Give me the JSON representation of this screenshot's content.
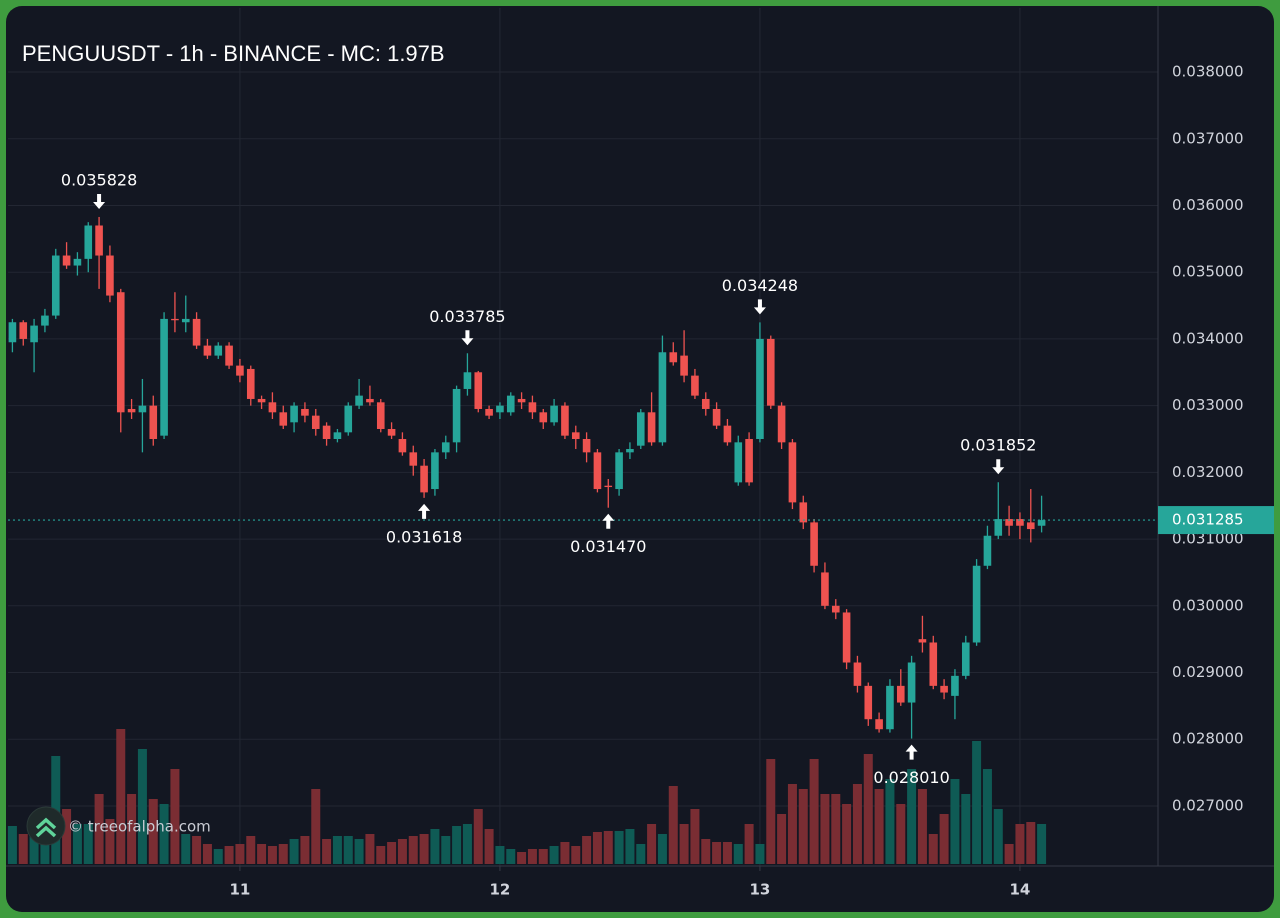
{
  "chart_data": {
    "type": "candlestick",
    "title": "PENGUUSDT - 1h - BINANCE - MC: 1.97B",
    "watermark": "© treeofalpha.com",
    "colors": {
      "up": "#26a69a",
      "down": "#ef5350",
      "volume_up": "#0f5b55",
      "volume_down": "#7a2d33"
    },
    "x": [
      10.125,
      10.1667,
      10.2083,
      10.25,
      10.2917,
      10.3333,
      10.375,
      10.4167,
      10.4583,
      10.5,
      10.5417,
      10.5833,
      10.625,
      10.6667,
      10.7083,
      10.75,
      10.7917,
      10.8333,
      10.875,
      10.9167,
      10.9583,
      11,
      11.0417,
      11.0833,
      11.125,
      11.1667,
      11.2083,
      11.25,
      11.2917,
      11.3333,
      11.375,
      11.4167,
      11.4583,
      11.5,
      11.5417,
      11.5833,
      11.625,
      11.6667,
      11.7083,
      11.75,
      11.7917,
      11.8333,
      11.875,
      11.9167,
      11.9583,
      12,
      12.0417,
      12.0833,
      12.125,
      12.1667,
      12.2083,
      12.25,
      12.2917,
      12.3333,
      12.375,
      12.4167,
      12.4583,
      12.5,
      12.5417,
      12.5833,
      12.625,
      12.6667,
      12.7083,
      12.75,
      12.7917,
      12.8333,
      12.875,
      12.9167,
      12.9583,
      13,
      13.0417,
      13.0833,
      13.125,
      13.1667,
      13.2083,
      13.25,
      13.2917,
      13.3333,
      13.375,
      13.4167,
      13.4583,
      13.5,
      13.5417,
      13.5833,
      13.625,
      13.6667,
      13.7083,
      13.75,
      13.7917,
      13.8333,
      13.875,
      13.9167,
      13.9583,
      14,
      14.0417,
      14.0833
    ],
    "open": [
      0.03395,
      0.03425,
      0.03395,
      0.0342,
      0.03435,
      0.03525,
      0.0351,
      0.0352,
      0.0357,
      0.03525,
      0.0347,
      0.03295,
      0.0329,
      0.033,
      0.03255,
      0.0343,
      0.03425,
      0.0343,
      0.0339,
      0.03375,
      0.0339,
      0.0336,
      0.03355,
      0.0331,
      0.03305,
      0.0329,
      0.03275,
      0.03295,
      0.03285,
      0.0327,
      0.0325,
      0.0326,
      0.033,
      0.0331,
      0.03305,
      0.03265,
      0.0325,
      0.0323,
      0.0321,
      0.03175,
      0.0323,
      0.03245,
      0.03325,
      0.0335,
      0.03295,
      0.0329,
      0.0329,
      0.0331,
      0.03305,
      0.0329,
      0.03275,
      0.033,
      0.0326,
      0.0325,
      0.0323,
      0.0318,
      0.03175,
      0.0323,
      0.0324,
      0.0329,
      0.03245,
      0.0338,
      0.03375,
      0.03345,
      0.0331,
      0.03295,
      0.0327,
      0.03185,
      0.0325,
      0.0325,
      0.034,
      0.033,
      0.03245,
      0.03155,
      0.03125,
      0.0305,
      0.03,
      0.0299,
      0.02915,
      0.0288,
      0.0283,
      0.02815,
      0.0288,
      0.02855,
      0.0295,
      0.02945,
      0.0288,
      0.02865,
      0.02895,
      0.02945,
      0.0306,
      0.03105,
      0.0313,
      0.0313,
      0.03125,
      0.0312
    ],
    "high": [
      0.0343,
      0.03428,
      0.0343,
      0.03445,
      0.03535,
      0.03545,
      0.0353,
      0.03575,
      0.035828,
      0.0354,
      0.03475,
      0.0331,
      0.0334,
      0.03315,
      0.0344,
      0.0347,
      0.03465,
      0.0344,
      0.034,
      0.03395,
      0.03395,
      0.0337,
      0.0336,
      0.03315,
      0.0332,
      0.033,
      0.03305,
      0.03305,
      0.03295,
      0.03275,
      0.03265,
      0.03305,
      0.0334,
      0.0333,
      0.0331,
      0.03275,
      0.0326,
      0.0324,
      0.0322,
      0.03235,
      0.03255,
      0.0333,
      0.033785,
      0.03352,
      0.033,
      0.03305,
      0.0332,
      0.0332,
      0.03315,
      0.03295,
      0.0331,
      0.03305,
      0.0327,
      0.0326,
      0.03235,
      0.0319,
      0.03235,
      0.03245,
      0.03295,
      0.0332,
      0.03405,
      0.03395,
      0.03413,
      0.03355,
      0.0332,
      0.03305,
      0.0328,
      0.03255,
      0.0326,
      0.034248,
      0.03405,
      0.03305,
      0.0325,
      0.03165,
      0.0313,
      0.03065,
      0.0301,
      0.02995,
      0.02925,
      0.02885,
      0.0284,
      0.0289,
      0.02905,
      0.02925,
      0.02985,
      0.02955,
      0.0289,
      0.02905,
      0.02955,
      0.0307,
      0.0312,
      0.031852,
      0.0315,
      0.0314,
      0.03175,
      0.03165
    ],
    "low": [
      0.0338,
      0.0339,
      0.0335,
      0.0341,
      0.0343,
      0.03505,
      0.03495,
      0.035,
      0.03475,
      0.03455,
      0.0326,
      0.0328,
      0.0323,
      0.0324,
      0.0325,
      0.0341,
      0.0341,
      0.03385,
      0.0337,
      0.0337,
      0.03355,
      0.03335,
      0.033,
      0.03295,
      0.0328,
      0.03265,
      0.0326,
      0.03275,
      0.03255,
      0.0324,
      0.03245,
      0.03255,
      0.03295,
      0.033,
      0.0326,
      0.0325,
      0.03225,
      0.03195,
      0.031618,
      0.03165,
      0.0322,
      0.0323,
      0.03315,
      0.0329,
      0.0328,
      0.0328,
      0.03285,
      0.03295,
      0.0328,
      0.03265,
      0.0327,
      0.0325,
      0.03235,
      0.03215,
      0.0317,
      0.03147,
      0.03165,
      0.0322,
      0.03235,
      0.0324,
      0.0324,
      0.0336,
      0.03335,
      0.0331,
      0.03285,
      0.03265,
      0.0324,
      0.0318,
      0.0318,
      0.03245,
      0.03295,
      0.03235,
      0.03145,
      0.03115,
      0.0305,
      0.02995,
      0.0298,
      0.02905,
      0.0287,
      0.0282,
      0.0281,
      0.0281,
      0.0285,
      0.02801,
      0.0293,
      0.02875,
      0.0286,
      0.0283,
      0.0289,
      0.0294,
      0.03055,
      0.031,
      0.03105,
      0.031,
      0.03095,
      0.0311
    ],
    "close": [
      0.03425,
      0.034,
      0.0342,
      0.03435,
      0.03525,
      0.0351,
      0.0352,
      0.0357,
      0.03525,
      0.03465,
      0.0329,
      0.0329,
      0.033,
      0.0325,
      0.0343,
      0.03428,
      0.0343,
      0.0339,
      0.03375,
      0.0339,
      0.0336,
      0.03345,
      0.0331,
      0.03305,
      0.0329,
      0.0327,
      0.033,
      0.03285,
      0.03265,
      0.0325,
      0.0326,
      0.033,
      0.03315,
      0.03305,
      0.03265,
      0.03255,
      0.0323,
      0.0321,
      0.0317,
      0.0323,
      0.03245,
      0.03325,
      0.0335,
      0.03295,
      0.03285,
      0.033,
      0.03315,
      0.03305,
      0.0329,
      0.03275,
      0.033,
      0.03255,
      0.0325,
      0.0323,
      0.03175,
      0.03178,
      0.0323,
      0.03235,
      0.0329,
      0.03245,
      0.0338,
      0.03365,
      0.03345,
      0.03315,
      0.03295,
      0.0327,
      0.03245,
      0.03245,
      0.03185,
      0.034,
      0.033,
      0.03245,
      0.03155,
      0.03125,
      0.0306,
      0.03,
      0.0299,
      0.02915,
      0.0288,
      0.0283,
      0.02815,
      0.0288,
      0.02855,
      0.02915,
      0.02945,
      0.0288,
      0.0287,
      0.02895,
      0.02945,
      0.0306,
      0.03105,
      0.0313,
      0.0312,
      0.0312,
      0.03115,
      0.031285
    ],
    "volume": [
      38,
      30,
      40,
      38,
      108,
      55,
      40,
      40,
      70,
      45,
      135,
      70,
      115,
      65,
      60,
      95,
      30,
      28,
      20,
      15,
      18,
      20,
      28,
      20,
      18,
      20,
      25,
      28,
      75,
      25,
      28,
      28,
      25,
      30,
      18,
      22,
      25,
      28,
      30,
      35,
      28,
      38,
      40,
      55,
      35,
      18,
      15,
      12,
      15,
      15,
      18,
      22,
      18,
      28,
      32,
      33,
      33,
      35,
      20,
      40,
      30,
      78,
      40,
      55,
      25,
      22,
      22,
      20,
      40,
      20,
      105,
      50,
      80,
      75,
      105,
      70,
      70,
      60,
      80,
      110,
      75,
      85,
      60,
      95,
      75,
      30,
      50,
      85,
      70,
      123,
      95,
      55,
      20,
      40,
      42,
      40
    ],
    "ylim": [
      0.0261,
      0.03896
    ],
    "yticks": [
      {
        "value": 0.027,
        "label": "0.027000"
      },
      {
        "value": 0.028,
        "label": "0.028000"
      },
      {
        "value": 0.029,
        "label": "0.029000"
      },
      {
        "value": 0.03,
        "label": "0.030000"
      },
      {
        "value": 0.031,
        "label": "0.031000"
      },
      {
        "value": 0.032,
        "label": "0.032000"
      },
      {
        "value": 0.033,
        "label": "0.033000"
      },
      {
        "value": 0.034,
        "label": "0.034000"
      },
      {
        "value": 0.035,
        "label": "0.035000"
      },
      {
        "value": 0.036,
        "label": "0.036000"
      },
      {
        "value": 0.037,
        "label": "0.037000"
      },
      {
        "value": 0.038,
        "label": "0.038000"
      }
    ],
    "xlim": [
      10.108,
      14.531
    ],
    "xticks": [
      11,
      12,
      13,
      14
    ],
    "grid": true,
    "last_price": {
      "value": 0.031285,
      "label": "0.031285"
    },
    "annotations": [
      {
        "x": 10.4583,
        "value": 0.035828,
        "label": "0.035828"
      },
      {
        "x": 11.7083,
        "value": 0.031618,
        "label": "0.031618"
      },
      {
        "x": 11.875,
        "value": 0.033785,
        "label": "0.033785"
      },
      {
        "x": 12.4167,
        "value": 0.03147,
        "label": "0.031470"
      },
      {
        "x": 13,
        "value": 0.034248,
        "label": "0.034248"
      },
      {
        "x": 13.5833,
        "value": 0.02801,
        "label": "0.028010"
      },
      {
        "x": 13.9167,
        "value": 0.031852,
        "label": "0.031852"
      }
    ]
  }
}
